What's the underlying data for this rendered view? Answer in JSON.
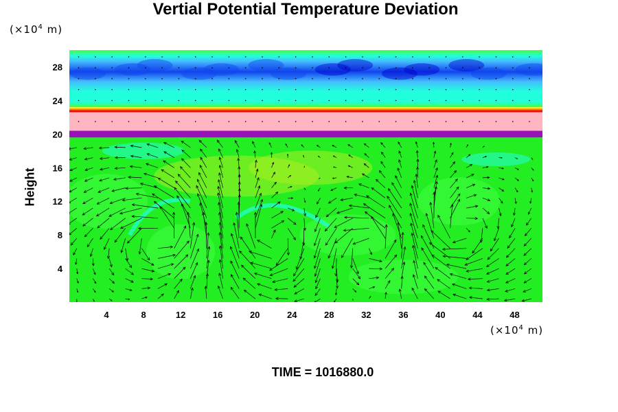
{
  "chart_data": {
    "type": "heatmap",
    "title": "Vertial Potential Temperature Deviation",
    "ylabel": "Height",
    "xlabel": "",
    "x_unit_prefix": "(×10",
    "x_unit_exp": "4",
    "x_unit_suffix": " m)",
    "y_unit_prefix": "(×10",
    "y_unit_exp": "4",
    "y_unit_suffix": " m)",
    "xlim": [
      0,
      51
    ],
    "ylim": [
      0,
      30
    ],
    "xticks": [
      4,
      8,
      12,
      16,
      20,
      24,
      28,
      32,
      36,
      40,
      44,
      48
    ],
    "yticks": [
      4,
      8,
      12,
      16,
      20,
      24,
      28
    ],
    "footer": "TIME = 1016880.0",
    "layers": [
      {
        "from": 0,
        "to": 19.6,
        "field": "green",
        "vectors": true
      },
      {
        "from": 19.6,
        "to": 20.4,
        "field": "purple"
      },
      {
        "from": 20.4,
        "to": 22.6,
        "field": "pink"
      },
      {
        "from": 22.6,
        "to": 23.2,
        "field": "red-yellow"
      },
      {
        "from": 23.2,
        "to": 30,
        "field": "cyan-blue"
      }
    ],
    "colors": {
      "green": "#22ee22",
      "light_green": "#44ff44",
      "yellow_green": "#aaee22",
      "cyan": "#22ffdd",
      "light_blue": "#44bbff",
      "blue": "#1144ee",
      "dark_blue": "#0000cc",
      "pink": "#ffb6c1",
      "purple": "#9911bb",
      "red": "#ee1111",
      "orange": "#ffaa00",
      "yellow": "#ffff22",
      "arrow": "#000000"
    }
  }
}
